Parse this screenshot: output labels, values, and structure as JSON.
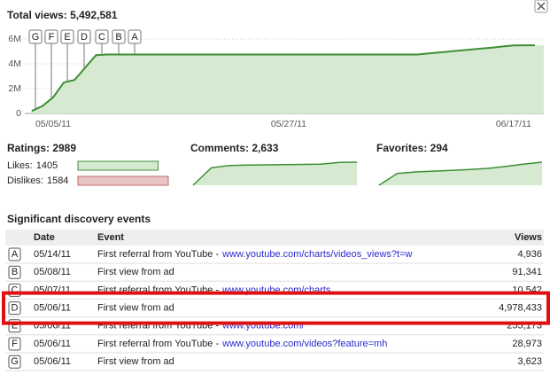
{
  "header": {
    "title": "Total views: 5,492,581"
  },
  "views_chart": {
    "type": "area",
    "categories": [
      null,
      null,
      "05/05/11",
      null,
      null,
      null,
      null,
      null,
      null,
      null,
      null,
      null,
      null,
      null,
      null,
      null,
      null,
      null,
      null,
      null,
      null,
      null,
      null,
      null,
      "05/27/11",
      null,
      null,
      null,
      null,
      null,
      null,
      null,
      null,
      null,
      null,
      null,
      null,
      null,
      null,
      null,
      null,
      null,
      null,
      null,
      null,
      "06/17/11",
      null,
      null
    ],
    "values": [
      200000,
      600000,
      1300000,
      2500000,
      2700000,
      3700000,
      4700000,
      4750000,
      4750000,
      4750000,
      4750000,
      4750000,
      4750000,
      4750000,
      4750000,
      4750000,
      4750000,
      4750000,
      4750000,
      4750000,
      4750000,
      4750000,
      4750000,
      4750000,
      4750000,
      4750000,
      4750000,
      4750000,
      4750000,
      4750000,
      4750000,
      4750000,
      4750000,
      4750000,
      4750000,
      4750000,
      4750000,
      4830000,
      4910000,
      4990000,
      5070000,
      5150000,
      5230000,
      5310000,
      5400000,
      5480000,
      5490000,
      5490000
    ],
    "color": "#3d8f34",
    "ylim": [
      0,
      6000000
    ],
    "yticks": [
      0,
      {
        "value": 2000000,
        "label": "2M"
      },
      {
        "value": 4000000,
        "label": "4M"
      },
      {
        "value": 6000000,
        "label": "6M"
      }
    ],
    "grid": true,
    "markers": [
      "G",
      "F",
      "E",
      "D",
      "C",
      "B",
      "A"
    ]
  },
  "ratings": {
    "title": "Ratings: 2989",
    "likes": {
      "label": "Likes:",
      "value": 1405,
      "color": "#3d8f34"
    },
    "dislikes": {
      "label": "Dislikes:",
      "value": 1584,
      "color": "#c46a6a"
    }
  },
  "comments": {
    "title": "Comments: 2,633",
    "values": [
      0,
      2000,
      2250,
      2300,
      2330,
      2360,
      2380,
      2400,
      2600,
      2633
    ]
  },
  "favorites": {
    "title": "Favorites: 294",
    "values": [
      0,
      150,
      170,
      180,
      190,
      200,
      215,
      240,
      270,
      294
    ]
  },
  "events": {
    "title": "Significant discovery events",
    "columns": [
      "Date",
      "Event",
      "Views"
    ],
    "highlight": 3,
    "rows": [
      {
        "key": "A",
        "date": "05/14/11",
        "event": "First referral from YouTube -",
        "link": "www.youtube.com/charts/videos_views?t=w",
        "views": "4,936"
      },
      {
        "key": "B",
        "date": "05/08/11",
        "event": "First view from ad",
        "link": null,
        "views": "91,341"
      },
      {
        "key": "C",
        "date": "05/07/11",
        "event": "First referral from YouTube -",
        "link": "www.youtube.com/charts",
        "views": "10,542"
      },
      {
        "key": "D",
        "date": "05/06/11",
        "event": "First view from ad",
        "link": null,
        "views": "4,978,433"
      },
      {
        "key": "E",
        "date": "05/06/11",
        "event": "First referral from YouTube -",
        "link": "www.youtube.com/",
        "views": "255,173"
      },
      {
        "key": "F",
        "date": "05/06/11",
        "event": "First referral from YouTube -",
        "link": "www.youtube.com/videos?feature=mh",
        "views": "28,973"
      },
      {
        "key": "G",
        "date": "05/06/11",
        "event": "First view from ad",
        "link": null,
        "views": "3,623"
      }
    ]
  }
}
